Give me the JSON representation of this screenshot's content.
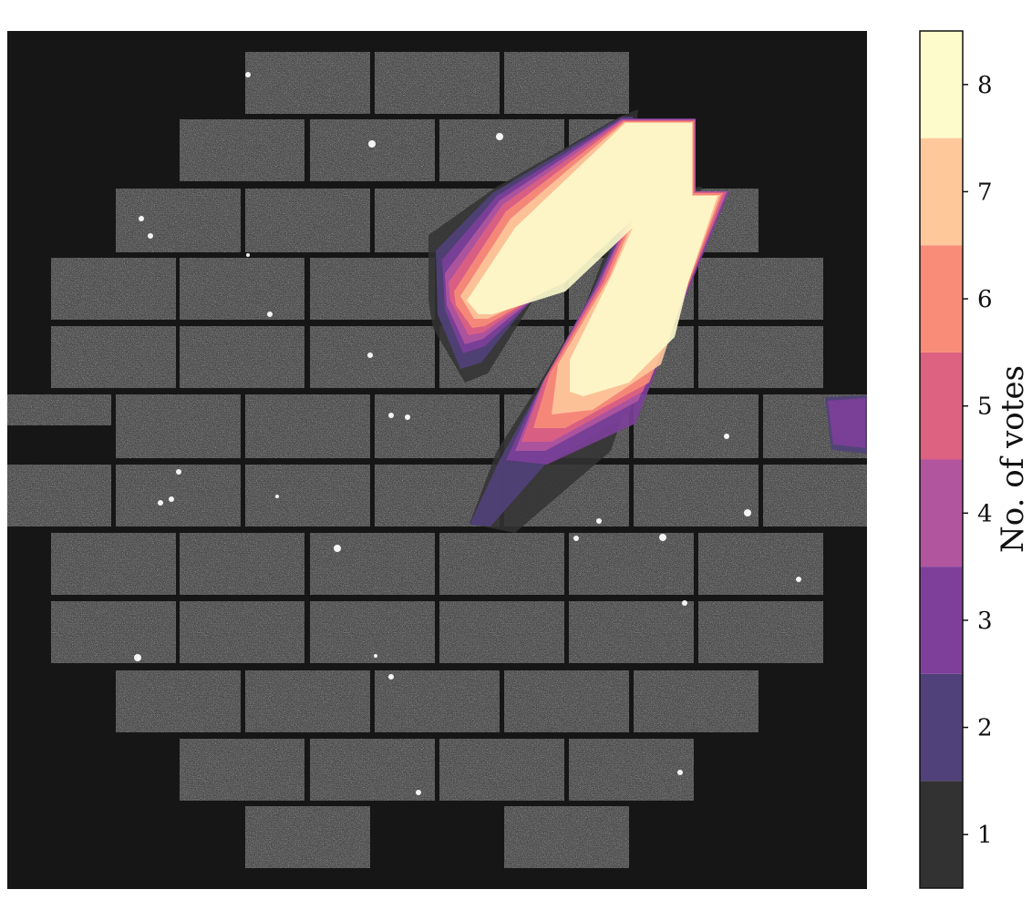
{
  "chart_data": {
    "type": "heatmap",
    "title": "",
    "colorbar": {
      "label": "No. of votes",
      "ticks": [
        "1",
        "2",
        "3",
        "4",
        "5",
        "6",
        "7",
        "8"
      ],
      "levels": [
        1,
        2,
        3,
        4,
        5,
        6,
        7,
        8
      ],
      "colors": [
        "#333232",
        "#51417a",
        "#7d3f9a",
        "#b1559f",
        "#dd6180",
        "#f88c78",
        "#fec89b",
        "#fdfbcb"
      ]
    },
    "background": {
      "frame_color": "#161616",
      "ccd_color": "#4b4b4b"
    },
    "overlay": {
      "description_levels_shown": [
        1,
        2,
        3,
        4,
        5,
        6,
        7,
        8
      ],
      "max_votes": 8
    }
  }
}
